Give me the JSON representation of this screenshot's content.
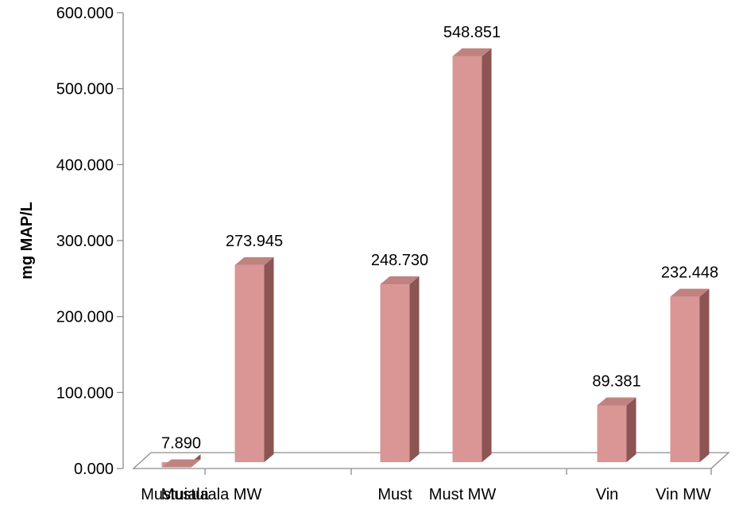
{
  "chart_data": {
    "type": "bar",
    "title": "",
    "xlabel": "",
    "ylabel": "mg MAP/L",
    "ylim": [
      0,
      600
    ],
    "yticks": [
      "0.000",
      "100.000",
      "200.000",
      "300.000",
      "400.000",
      "500.000",
      "600.000"
    ],
    "grid": false,
    "legend": "none",
    "three_d": true,
    "bar_color": "#d99694",
    "bar_side_color": "#8c5452",
    "bar_top_color": "#c08280",
    "categories": [
      "Mustuiala",
      "Mustuiala MW",
      "Must",
      "Must MW",
      "Vin",
      "Vin MW"
    ],
    "values": [
      7.89,
      273.945,
      248.73,
      548.851,
      89.381,
      232.448
    ],
    "value_labels": [
      "7.890",
      "273.945",
      "248.730",
      "548.851",
      "89.381",
      "232.448"
    ]
  }
}
